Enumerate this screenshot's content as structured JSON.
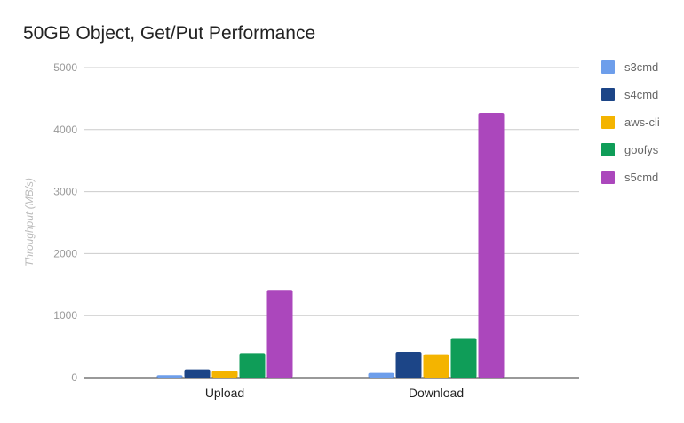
{
  "chart_data": {
    "type": "bar",
    "title": "50GB Object, Get/Put Performance",
    "xlabel": "",
    "ylabel": "Throughput (MB/s)",
    "ylim": [
      0,
      5000
    ],
    "yticks": [
      0,
      1000,
      2000,
      3000,
      4000,
      5000
    ],
    "grid": true,
    "legend": "right",
    "categories": [
      "Upload",
      "Download"
    ],
    "series": [
      {
        "name": "s3cmd",
        "color": "#6d9eeb",
        "values": [
          40,
          77
        ]
      },
      {
        "name": "s4cmd",
        "color": "#1c4587",
        "values": [
          135,
          415
        ]
      },
      {
        "name": "aws-cli",
        "color": "#f4b400",
        "values": [
          110,
          377
        ]
      },
      {
        "name": "goofys",
        "color": "#0f9d58",
        "values": [
          395,
          638
        ]
      },
      {
        "name": "s5cmd",
        "color": "#ab47bc",
        "values": [
          1415,
          4270
        ]
      }
    ]
  }
}
